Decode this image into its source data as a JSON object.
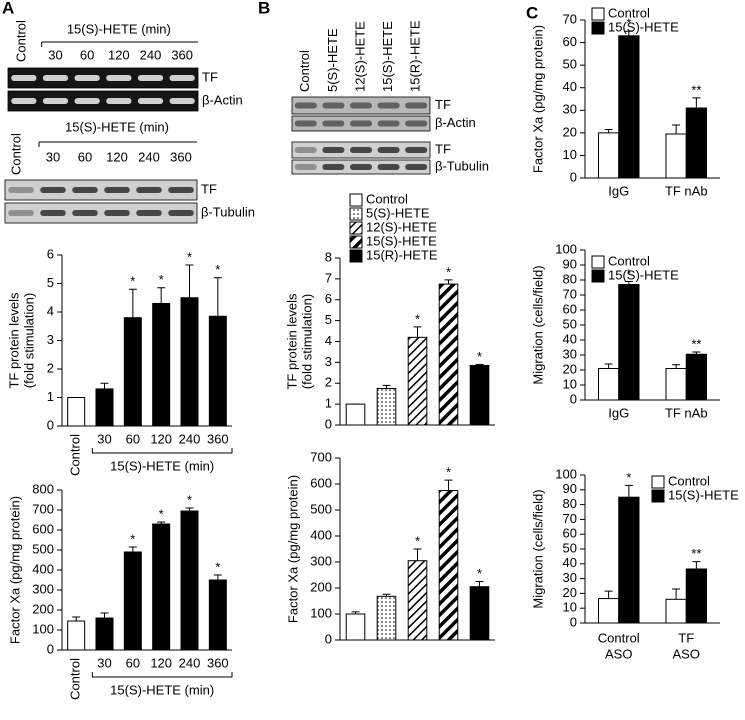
{
  "panel_labels": [
    "A",
    "B",
    "C"
  ],
  "blots": [
    {
      "header_rotated": "Control",
      "header_group": "15(S)-HETE (min)",
      "lanes": [
        "30",
        "60",
        "120",
        "240",
        "360"
      ],
      "rows": [
        "TF",
        "β-Actin"
      ]
    },
    {
      "header_rotated": "Control",
      "header_group": "15(S)-HETE (min)",
      "lanes": [
        "30",
        "60",
        "120",
        "240",
        "360"
      ],
      "rows": [
        "TF",
        "β-Tubulin"
      ]
    },
    {
      "lanes_rotated": [
        "Control",
        "5(S)-HETE",
        "12(S)-HETE",
        "15(S)-HETE",
        "15(R)-HETE"
      ],
      "rows": [
        "TF",
        "β-Actin",
        "TF",
        "β-Tubulin"
      ]
    }
  ],
  "chart_data": [
    {
      "type": "bar",
      "y_label": [
        "TF protein levels",
        "(fold stimulation)"
      ],
      "categories": [
        "Control",
        "30",
        "60",
        "120",
        "240",
        "360"
      ],
      "x_group_label": "15(S)-HETE (min)",
      "series": [
        {
          "values": [
            1,
            1.3,
            3.8,
            4.3,
            4.5,
            3.85
          ],
          "errors": [
            0,
            0.2,
            1.0,
            0.55,
            1.15,
            1.35
          ],
          "labels": [
            null,
            null,
            "*",
            "*",
            "*",
            "*"
          ],
          "fills": [
            "white",
            "black",
            "black",
            "black",
            "black",
            "black"
          ]
        }
      ],
      "ylim": [
        0,
        6
      ],
      "yticks": [
        0,
        1,
        2,
        3,
        4,
        5,
        6
      ]
    },
    {
      "type": "bar",
      "y_label": "Factor Xa (pg/mg protein)",
      "categories": [
        "Control",
        "30",
        "60",
        "120",
        "240",
        "360"
      ],
      "x_group_label": "15(S)-HETE (min)",
      "series": [
        {
          "values": [
            145,
            160,
            490,
            630,
            695,
            350
          ],
          "errors": [
            20,
            25,
            25,
            10,
            15,
            25
          ],
          "labels": [
            null,
            null,
            "*",
            "*",
            "*",
            "*"
          ],
          "fills": [
            "white",
            "black",
            "black",
            "black",
            "black",
            "black"
          ]
        }
      ],
      "ylim": [
        0,
        800
      ],
      "yticks": [
        0,
        100,
        200,
        300,
        400,
        500,
        600,
        700,
        800
      ]
    },
    {
      "type": "bar",
      "y_label": [
        "TF protein levels",
        "(fold stimulation)"
      ],
      "categories": [
        "Control",
        "5(S)-HETE",
        "12(S)-HETE",
        "15(S)-HETE",
        "15(R)-HETE"
      ],
      "x_tick_labels": false,
      "series": [
        {
          "values": [
            1,
            1.75,
            4.2,
            6.75,
            2.85
          ],
          "errors": [
            0,
            0.15,
            0.5,
            0.2,
            0.05
          ],
          "labels": [
            null,
            null,
            "*",
            "*",
            "*"
          ],
          "fills": [
            "white",
            "dots",
            "hatch",
            "hatch-wide",
            "black"
          ]
        }
      ],
      "ylim": [
        0,
        8
      ],
      "yticks": [
        0,
        1,
        2,
        3,
        4,
        5,
        6,
        7,
        8
      ]
    },
    {
      "type": "bar",
      "y_label": "Factor Xa (pg/mg protein)",
      "x_tick_labels": false,
      "series": [
        {
          "values": [
            100,
            168,
            305,
            575,
            205
          ],
          "errors": [
            8,
            8,
            45,
            40,
            20
          ],
          "labels": [
            null,
            null,
            "*",
            "*",
            "*"
          ],
          "fills": [
            "white",
            "dots",
            "hatch",
            "hatch-wide",
            "black"
          ]
        }
      ],
      "ylim": [
        0,
        700
      ],
      "yticks": [
        0,
        100,
        200,
        300,
        400,
        500,
        600,
        700
      ]
    },
    {
      "type": "bar",
      "y_label": "Factor Xa (pg/mg protein)",
      "categories": [
        "IgG",
        "TF nAb"
      ],
      "series": [
        {
          "name": "Control",
          "color": "#ffffff",
          "values": [
            20,
            19.5
          ],
          "errors": [
            1.5,
            4
          ],
          "labels": [
            null,
            null
          ]
        },
        {
          "name": "15(S)-HETE",
          "color": "#000000",
          "values": [
            63,
            31
          ],
          "errors": [
            2,
            4.5
          ],
          "labels": [
            "*",
            "**"
          ]
        }
      ],
      "ylim": [
        0,
        70
      ],
      "yticks": [
        0,
        10,
        20,
        30,
        40,
        50,
        60,
        70
      ]
    },
    {
      "type": "bar",
      "y_label": "Migration (cells/field)",
      "categories": [
        "IgG",
        "TF nAb"
      ],
      "series": [
        {
          "name": "Control",
          "color": "#ffffff",
          "values": [
            21,
            21
          ],
          "errors": [
            3,
            2.5
          ],
          "labels": [
            null,
            null
          ]
        },
        {
          "name": "15(S)-HETE",
          "color": "#000000",
          "values": [
            77,
            30.5
          ],
          "errors": [
            2,
            1.5
          ],
          "labels": [
            "*",
            "**"
          ]
        }
      ],
      "ylim": [
        0,
        100
      ],
      "yticks": [
        0,
        10,
        20,
        30,
        40,
        50,
        60,
        70,
        80,
        90,
        100
      ]
    },
    {
      "type": "bar",
      "y_label": "Migration (cells/field)",
      "categories": [
        [
          "Control",
          "ASO"
        ],
        [
          "TF",
          "ASO"
        ]
      ],
      "series": [
        {
          "name": "Control",
          "color": "#ffffff",
          "values": [
            16.5,
            16
          ],
          "errors": [
            5,
            7
          ],
          "labels": [
            null,
            null
          ]
        },
        {
          "name": "15(S)-HETE",
          "color": "#000000",
          "values": [
            85,
            36.5
          ],
          "errors": [
            8,
            5
          ],
          "labels": [
            "*",
            "**"
          ]
        }
      ],
      "ylim": [
        0,
        100
      ],
      "yticks": [
        0,
        10,
        20,
        30,
        40,
        50,
        60,
        70,
        80,
        90,
        100
      ]
    }
  ]
}
